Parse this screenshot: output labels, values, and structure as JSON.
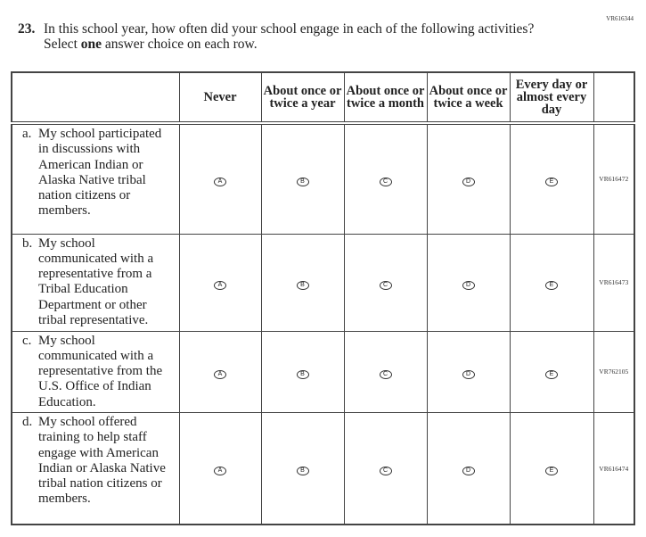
{
  "question_id": "VR616344",
  "question": {
    "number": "23.",
    "text_before": "In this school year, how often did your school engage in each of the following activities? Select ",
    "bold": "one",
    "text_after": " answer choice on each row."
  },
  "columns": [
    "Never",
    "About once or twice a year",
    "About once or twice a month",
    "About once or twice a week",
    "Every day or almost every day"
  ],
  "bubble_letters": [
    "A",
    "B",
    "C",
    "D",
    "E"
  ],
  "rows": [
    {
      "letter": "a.",
      "text": "My school participated in discussions with American Indian or Alaska Native tribal nation citizens or members.",
      "id": "VR616472"
    },
    {
      "letter": "b.",
      "text": "My school communicated with a representative from a Tribal Education Department or other tribal representative.",
      "id": "VR616473"
    },
    {
      "letter": "c.",
      "text": "My school communicated with a representative from the U.S. Office of Indian Education.",
      "id": "VR762105"
    },
    {
      "letter": "d.",
      "text": "My school offered training to help staff engage with American Indian or Alaska Native tribal nation citizens or members.",
      "id": "VR616474"
    }
  ]
}
